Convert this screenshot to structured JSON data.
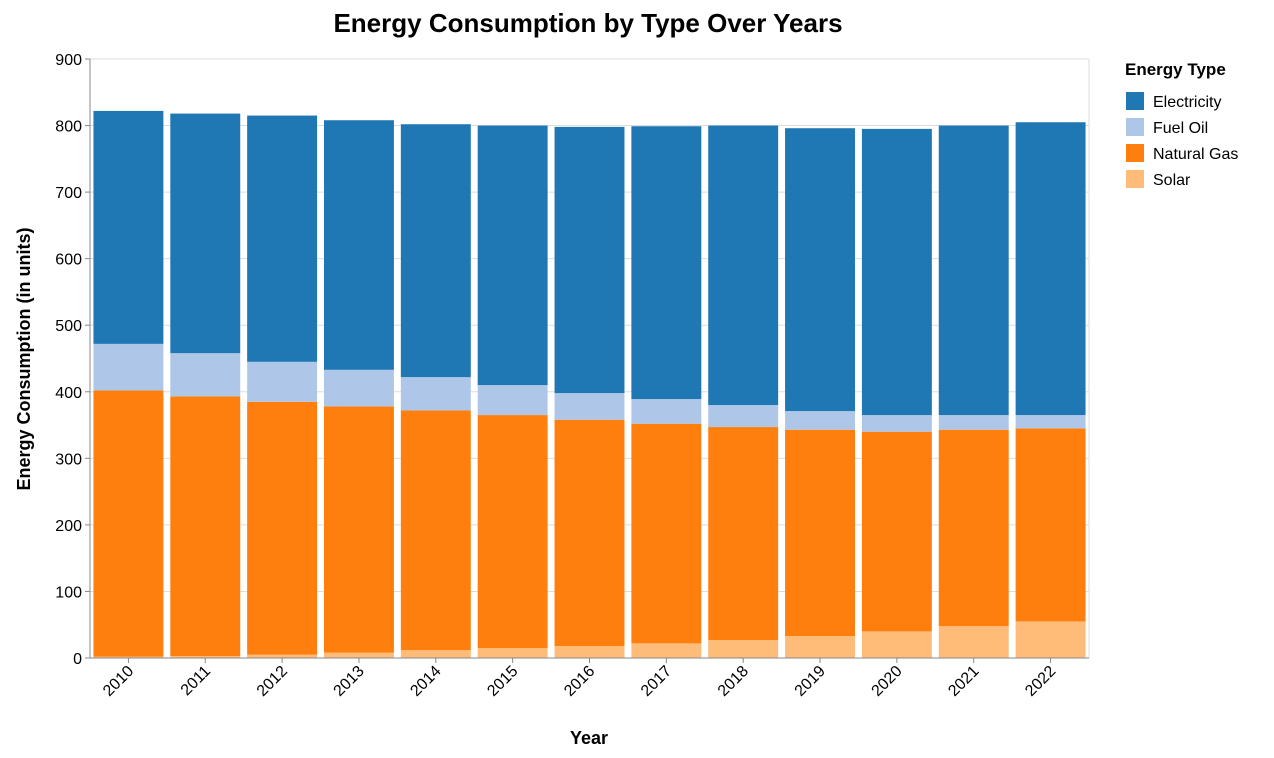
{
  "chart_data": {
    "type": "bar",
    "stacked": true,
    "title": "Energy Consumption by Type Over Years",
    "xlabel": "Year",
    "ylabel": "Energy Consumption (in units)",
    "ylim": [
      0,
      900
    ],
    "yticks": [
      0,
      100,
      200,
      300,
      400,
      500,
      600,
      700,
      800,
      900
    ],
    "grid": true,
    "legend_title": "Energy Type",
    "legend_position": "right",
    "categories": [
      "2010",
      "2011",
      "2012",
      "2013",
      "2014",
      "2015",
      "2016",
      "2017",
      "2018",
      "2019",
      "2020",
      "2021",
      "2022"
    ],
    "series": [
      {
        "name": "Solar",
        "color": "#ffbb78",
        "values": [
          2,
          3,
          5,
          8,
          12,
          15,
          18,
          22,
          27,
          33,
          40,
          48,
          55
        ]
      },
      {
        "name": "Natural Gas",
        "color": "#ff7f0e",
        "values": [
          400,
          390,
          380,
          370,
          360,
          350,
          340,
          330,
          320,
          310,
          300,
          295,
          290
        ]
      },
      {
        "name": "Fuel Oil",
        "color": "#aec7e8",
        "values": [
          70,
          65,
          60,
          55,
          50,
          45,
          40,
          37,
          33,
          28,
          25,
          22,
          20
        ]
      },
      {
        "name": "Electricity",
        "color": "#1f77b4",
        "values": [
          350,
          360,
          370,
          375,
          380,
          390,
          400,
          410,
          420,
          425,
          430,
          435,
          440
        ]
      }
    ],
    "legend_order": [
      "Electricity",
      "Fuel Oil",
      "Natural Gas",
      "Solar"
    ]
  }
}
